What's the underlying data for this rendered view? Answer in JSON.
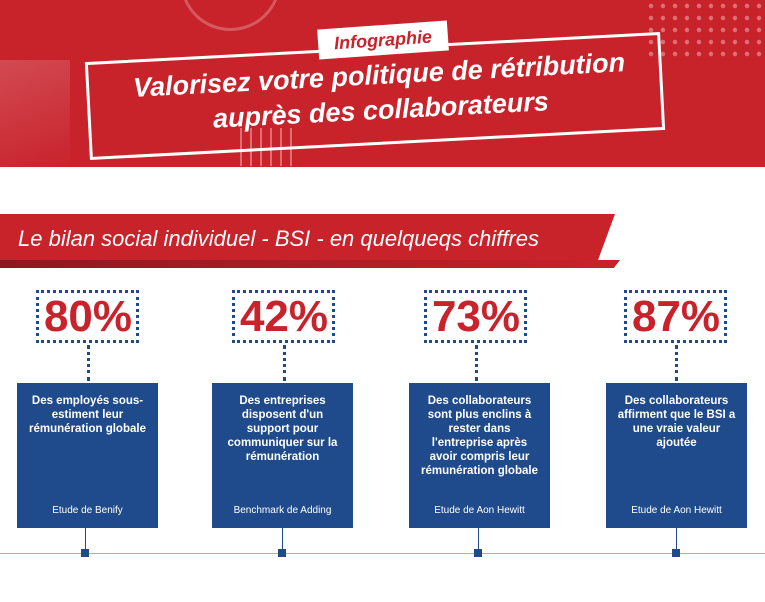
{
  "header": {
    "tag": "Infographie",
    "title_line1": "Valorisez votre politique de rétribution",
    "title_line2": "auprès des collaborateurs"
  },
  "section": {
    "title": "Le bilan social individuel - BSI - en quelqueqs chiffres"
  },
  "stats": [
    {
      "percent": "80%",
      "description": "Des employés sous-estiment leur rémunération globale",
      "source": "Etude de Benify"
    },
    {
      "percent": "42%",
      "description": "Des entreprises disposent d'un support pour communiquer sur la rémunération",
      "source": "Benchmark de Adding"
    },
    {
      "percent": "73%",
      "description": "Des collaborateurs sont plus enclins à rester dans l'entreprise après avoir compris leur rémunération globale",
      "source": "Etude de Aon Hewitt"
    },
    {
      "percent": "87%",
      "description": "Des collaborateurs affirment que le BSI a une vraie valeur ajoutée",
      "source": "Etude de Aon Hewitt"
    }
  ],
  "colors": {
    "brand_red": "#c8222b",
    "brand_blue": "#1f4b8c"
  }
}
